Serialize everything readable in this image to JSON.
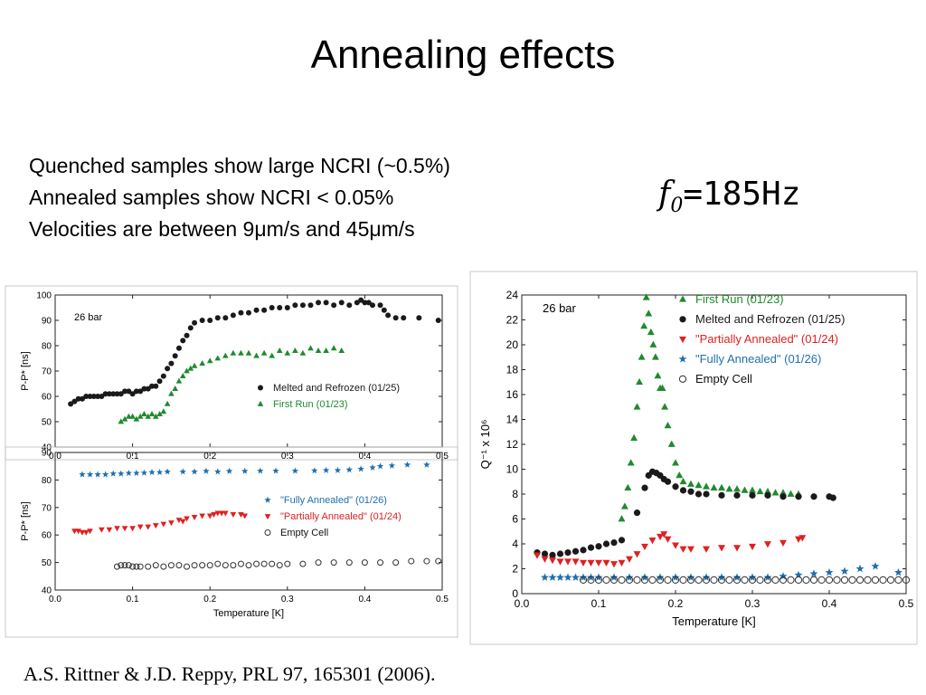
{
  "slide": {
    "title": "Annealing effects",
    "bullets": [
      "Quenched samples show large NCRI (~0.5%)",
      "Annealed samples show NCRI < 0.05%",
      "Velocities are between 9μm/s and 45μm/s"
    ],
    "frequency": {
      "symbol": "f",
      "subscript": "0",
      "value": "=185Hz"
    },
    "citation": "A.S. Rittner & J.D. Reppy, PRL 97, 165301 (2006)."
  },
  "chart_data": [
    {
      "id": "top-left",
      "type": "scatter",
      "annotation": "26 bar",
      "ylabel": "P-P* [ns]",
      "xlabel": "",
      "xlim": [
        0.0,
        0.5
      ],
      "ylim": [
        40,
        100
      ],
      "xticks": [
        "0.0",
        "0.1",
        "0.2",
        "0.3",
        "0.4",
        "0.5"
      ],
      "yticks": [
        "40",
        "50",
        "60",
        "70",
        "80",
        "90",
        "100"
      ],
      "legend_position": "bottom-right",
      "series": [
        {
          "name": "Melted and Refrozen (01/25)",
          "marker": "circle",
          "color": "#1a1a1a",
          "x": [
            0.02,
            0.025,
            0.03,
            0.035,
            0.04,
            0.045,
            0.05,
            0.055,
            0.06,
            0.065,
            0.07,
            0.075,
            0.08,
            0.085,
            0.09,
            0.095,
            0.1,
            0.105,
            0.11,
            0.115,
            0.12,
            0.125,
            0.13,
            0.135,
            0.14,
            0.145,
            0.15,
            0.155,
            0.16,
            0.165,
            0.17,
            0.175,
            0.18,
            0.19,
            0.2,
            0.21,
            0.22,
            0.23,
            0.24,
            0.25,
            0.26,
            0.27,
            0.28,
            0.29,
            0.3,
            0.31,
            0.32,
            0.33,
            0.34,
            0.35,
            0.36,
            0.37,
            0.38,
            0.39,
            0.395,
            0.4,
            0.405,
            0.41,
            0.42,
            0.425,
            0.43,
            0.44,
            0.45,
            0.47,
            0.495
          ],
          "y": [
            57,
            58,
            59,
            59,
            60,
            60,
            60,
            60,
            60,
            61,
            61,
            61,
            61,
            61,
            62,
            62,
            61,
            62,
            62,
            63,
            63,
            64,
            64,
            66,
            68,
            71,
            73,
            76,
            79,
            82,
            84,
            87,
            89,
            90,
            90,
            91,
            91,
            92,
            93,
            93,
            94,
            94,
            95,
            95,
            95,
            96,
            96,
            96,
            97,
            97,
            96,
            97,
            96,
            97,
            98,
            97,
            97,
            96,
            96,
            94,
            92,
            91,
            91,
            91,
            90
          ]
        },
        {
          "name": "First Run (01/23)",
          "marker": "triangle-up",
          "color": "#1f8a2e",
          "x": [
            0.085,
            0.09,
            0.095,
            0.1,
            0.105,
            0.11,
            0.115,
            0.12,
            0.125,
            0.13,
            0.135,
            0.14,
            0.145,
            0.15,
            0.155,
            0.16,
            0.165,
            0.17,
            0.175,
            0.18,
            0.19,
            0.2,
            0.21,
            0.22,
            0.23,
            0.24,
            0.25,
            0.26,
            0.27,
            0.28,
            0.29,
            0.3,
            0.31,
            0.32,
            0.33,
            0.34,
            0.35,
            0.36,
            0.37
          ],
          "y": [
            50,
            51,
            52,
            52,
            51,
            52,
            53,
            52,
            53,
            52,
            53,
            54,
            57,
            61,
            63,
            66,
            68,
            70,
            71,
            72,
            73,
            74,
            75,
            76,
            77,
            77,
            77,
            76,
            77,
            76,
            78,
            77,
            78,
            77,
            79,
            78,
            78,
            79,
            78
          ]
        }
      ]
    },
    {
      "id": "bottom-left",
      "type": "scatter",
      "annotation": "",
      "ylabel": "P-P* [ns]",
      "xlabel": "Temperature [K]",
      "xlim": [
        0.0,
        0.5
      ],
      "ylim": [
        40,
        90
      ],
      "xticks": [
        "0.0",
        "0.1",
        "0.2",
        "0.3",
        "0.4",
        "0.5"
      ],
      "yticks": [
        "40",
        "50",
        "60",
        "70",
        "80",
        "90"
      ],
      "legend_position": "center-right",
      "series": [
        {
          "name": "\"Fully Annealed\" (01/26)",
          "marker": "star",
          "color": "#1f6fb0",
          "x": [
            0.035,
            0.045,
            0.055,
            0.065,
            0.075,
            0.085,
            0.095,
            0.105,
            0.115,
            0.125,
            0.135,
            0.145,
            0.165,
            0.18,
            0.195,
            0.21,
            0.225,
            0.245,
            0.265,
            0.285,
            0.31,
            0.335,
            0.35,
            0.365,
            0.38,
            0.395,
            0.41,
            0.42,
            0.435,
            0.455,
            0.48
          ],
          "y": [
            82,
            82,
            82,
            82,
            82.3,
            82.3,
            82.5,
            82.5,
            82.6,
            82.8,
            82.8,
            83,
            83,
            83,
            83.2,
            83,
            83.2,
            83.2,
            83.3,
            83.3,
            83.3,
            83.4,
            83.5,
            83.5,
            83.7,
            84,
            84.5,
            85,
            85.2,
            85.5,
            85.5
          ]
        },
        {
          "name": "\"Partially Annealed\" (01/24)",
          "marker": "triangle-down",
          "color": "#e02020",
          "x": [
            0.025,
            0.03,
            0.035,
            0.04,
            0.045,
            0.06,
            0.07,
            0.08,
            0.09,
            0.1,
            0.11,
            0.12,
            0.13,
            0.14,
            0.15,
            0.16,
            0.165,
            0.17,
            0.18,
            0.19,
            0.2,
            0.205,
            0.21,
            0.215,
            0.22,
            0.23,
            0.24,
            0.245
          ],
          "y": [
            61.5,
            61.5,
            61,
            61,
            61.5,
            62,
            62,
            62.5,
            62.5,
            62.5,
            63,
            63,
            63.5,
            64,
            64.5,
            65.5,
            65,
            66,
            66.5,
            67,
            67,
            67.5,
            68,
            68,
            68,
            67.5,
            67.5,
            67
          ]
        },
        {
          "name": "Empty Cell",
          "marker": "open-circle",
          "color": "#333333",
          "x": [
            0.08,
            0.085,
            0.09,
            0.095,
            0.1,
            0.105,
            0.11,
            0.12,
            0.13,
            0.14,
            0.15,
            0.16,
            0.17,
            0.18,
            0.19,
            0.2,
            0.21,
            0.22,
            0.23,
            0.24,
            0.25,
            0.26,
            0.27,
            0.28,
            0.29,
            0.3,
            0.32,
            0.34,
            0.36,
            0.38,
            0.4,
            0.42,
            0.44,
            0.46,
            0.48,
            0.495
          ],
          "y": [
            48.5,
            49,
            49,
            49,
            48.5,
            48.5,
            48.5,
            48.5,
            49,
            48.5,
            49,
            49,
            48.5,
            49,
            49,
            49,
            49.5,
            49,
            49,
            49.5,
            49,
            49.5,
            49.5,
            49.5,
            49,
            49.5,
            49.5,
            50,
            50,
            50,
            50,
            50,
            50,
            50.5,
            50.5,
            50.5
          ]
        }
      ]
    },
    {
      "id": "right",
      "type": "scatter",
      "annotation": "26 bar",
      "ylabel": "Q⁻¹ x 10⁶",
      "xlabel": "Temperature [K]",
      "xlim": [
        0.0,
        0.5
      ],
      "ylim": [
        0,
        24
      ],
      "xticks": [
        "0.0",
        "0.1",
        "0.2",
        "0.3",
        "0.4",
        "0.5"
      ],
      "yticks": [
        "0",
        "2",
        "4",
        "6",
        "8",
        "10",
        "12",
        "14",
        "16",
        "18",
        "20",
        "22",
        "24"
      ],
      "legend_position": "top-right",
      "series": [
        {
          "name": "First Run (01/23)",
          "marker": "triangle-up",
          "color": "#1f8a2e",
          "x": [
            0.13,
            0.134,
            0.138,
            0.142,
            0.146,
            0.15,
            0.153,
            0.156,
            0.159,
            0.162,
            0.165,
            0.168,
            0.171,
            0.174,
            0.177,
            0.18,
            0.183,
            0.186,
            0.19,
            0.195,
            0.2,
            0.205,
            0.21,
            0.22,
            0.23,
            0.24,
            0.25,
            0.26,
            0.27,
            0.28,
            0.29,
            0.3,
            0.31,
            0.32,
            0.33,
            0.34,
            0.35,
            0.36
          ],
          "y": [
            6,
            7,
            8.5,
            10.5,
            12.5,
            15,
            17,
            19,
            21.5,
            23.8,
            22.5,
            21,
            20,
            19,
            17.5,
            16.5,
            16.5,
            15,
            13.5,
            12,
            10.5,
            9.5,
            9,
            8.8,
            8.7,
            8.6,
            8.5,
            8.5,
            8.4,
            8.4,
            8.3,
            8.3,
            8.2,
            8.2,
            8.1,
            8.1,
            8.0,
            8.0
          ]
        },
        {
          "name": "Melted and Refrozen (01/25)",
          "marker": "circle",
          "color": "#1a1a1a",
          "x": [
            0.02,
            0.03,
            0.04,
            0.05,
            0.06,
            0.07,
            0.08,
            0.09,
            0.1,
            0.11,
            0.12,
            0.13,
            0.15,
            0.16,
            0.165,
            0.17,
            0.175,
            0.18,
            0.185,
            0.19,
            0.2,
            0.21,
            0.22,
            0.23,
            0.24,
            0.26,
            0.28,
            0.3,
            0.32,
            0.34,
            0.36,
            0.38,
            0.4,
            0.405
          ],
          "y": [
            3.3,
            3.2,
            3.1,
            3.2,
            3.3,
            3.4,
            3.5,
            3.7,
            3.8,
            4.0,
            4.1,
            4.3,
            6.5,
            8.5,
            9.5,
            9.8,
            9.7,
            9.5,
            9.2,
            9.0,
            8.6,
            8.3,
            8.2,
            8.0,
            8.0,
            7.9,
            7.9,
            7.9,
            7.9,
            7.8,
            7.8,
            7.8,
            7.8,
            7.7
          ]
        },
        {
          "name": "\"Partially Annealed\" (01/24)",
          "marker": "triangle-down",
          "color": "#e02020",
          "x": [
            0.02,
            0.03,
            0.04,
            0.05,
            0.06,
            0.07,
            0.08,
            0.09,
            0.1,
            0.11,
            0.12,
            0.13,
            0.14,
            0.15,
            0.16,
            0.17,
            0.18,
            0.185,
            0.19,
            0.2,
            0.21,
            0.22,
            0.24,
            0.26,
            0.28,
            0.3,
            0.32,
            0.34,
            0.36,
            0.365
          ],
          "y": [
            3.1,
            2.8,
            2.7,
            2.6,
            2.6,
            2.6,
            2.5,
            2.5,
            2.5,
            2.5,
            2.4,
            2.5,
            2.8,
            3.2,
            3.8,
            4.3,
            4.6,
            4.8,
            4.4,
            3.9,
            3.6,
            3.6,
            3.6,
            3.7,
            3.7,
            3.8,
            4.0,
            4.1,
            4.4,
            4.5
          ]
        },
        {
          "name": "\"Fully Annealed\" (01/26)",
          "marker": "star",
          "color": "#1f6fb0",
          "x": [
            0.03,
            0.04,
            0.05,
            0.06,
            0.07,
            0.08,
            0.09,
            0.1,
            0.12,
            0.14,
            0.16,
            0.18,
            0.2,
            0.22,
            0.24,
            0.26,
            0.28,
            0.3,
            0.32,
            0.34,
            0.36,
            0.38,
            0.4,
            0.42,
            0.44,
            0.46,
            0.49
          ],
          "y": [
            1.3,
            1.3,
            1.3,
            1.3,
            1.3,
            1.3,
            1.3,
            1.3,
            1.3,
            1.3,
            1.3,
            1.3,
            1.3,
            1.3,
            1.3,
            1.3,
            1.3,
            1.3,
            1.3,
            1.4,
            1.5,
            1.6,
            1.7,
            1.8,
            2.0,
            2.2,
            1.7
          ]
        },
        {
          "name": "Empty Cell",
          "marker": "open-circle",
          "color": "#333333",
          "x": [
            0.08,
            0.09,
            0.1,
            0.11,
            0.12,
            0.13,
            0.14,
            0.15,
            0.16,
            0.17,
            0.18,
            0.19,
            0.2,
            0.21,
            0.22,
            0.23,
            0.24,
            0.25,
            0.26,
            0.27,
            0.28,
            0.29,
            0.3,
            0.31,
            0.32,
            0.33,
            0.34,
            0.35,
            0.36,
            0.37,
            0.38,
            0.39,
            0.4,
            0.41,
            0.42,
            0.43,
            0.44,
            0.45,
            0.46,
            0.47,
            0.48,
            0.49,
            0.5
          ],
          "y": [
            1.1,
            1.1,
            1.1,
            1.1,
            1.1,
            1.1,
            1.1,
            1.1,
            1.1,
            1.1,
            1.1,
            1.1,
            1.1,
            1.1,
            1.1,
            1.1,
            1.1,
            1.1,
            1.1,
            1.1,
            1.1,
            1.1,
            1.1,
            1.1,
            1.1,
            1.1,
            1.1,
            1.1,
            1.1,
            1.1,
            1.1,
            1.1,
            1.1,
            1.1,
            1.1,
            1.1,
            1.1,
            1.1,
            1.1,
            1.1,
            1.1,
            1.1,
            1.1
          ]
        }
      ]
    }
  ]
}
